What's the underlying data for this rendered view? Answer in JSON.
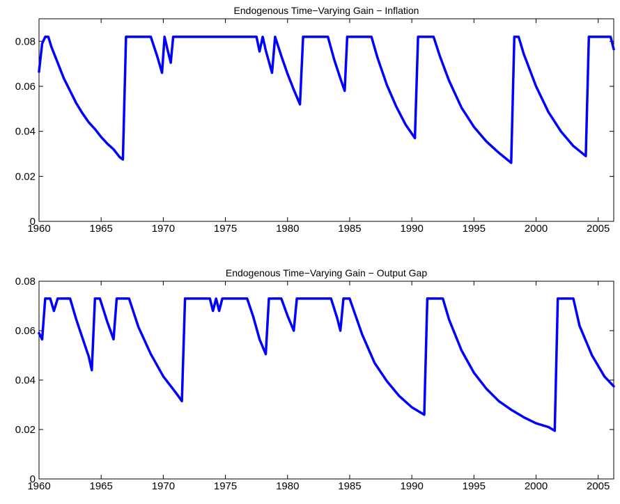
{
  "chart_data": [
    {
      "type": "line",
      "title": "Endogenous Time−Varying Gain − Inflation",
      "xlabel": "",
      "ylabel": "",
      "xlim": [
        1960,
        2006.25
      ],
      "ylim": [
        0,
        0.09
      ],
      "xticks": [
        1960,
        1965,
        1970,
        1975,
        1980,
        1985,
        1990,
        1995,
        2000,
        2005
      ],
      "xtick_labels": [
        "1960",
        "1965",
        "1970",
        "1975",
        "1980",
        "1985",
        "1990",
        "1995",
        "2000",
        "2005"
      ],
      "yticks": [
        0,
        0.02,
        0.04,
        0.06,
        0.08
      ],
      "ytick_labels": [
        "0",
        "0.02",
        "0.04",
        "0.06",
        "0.08"
      ],
      "grid": false,
      "color": "#0000ff",
      "series": [
        {
          "points": [
            [
              1960.0,
              0.0665
            ],
            [
              1960.25,
              0.079
            ],
            [
              1960.5,
              0.082
            ],
            [
              1960.75,
              0.082
            ],
            [
              1961.0,
              0.0775
            ],
            [
              1961.5,
              0.0705
            ],
            [
              1962.0,
              0.0635
            ],
            [
              1962.5,
              0.058
            ],
            [
              1963.0,
              0.0525
            ],
            [
              1963.5,
              0.048
            ],
            [
              1964.0,
              0.044
            ],
            [
              1964.5,
              0.041
            ],
            [
              1965.0,
              0.0375
            ],
            [
              1965.5,
              0.0345
            ],
            [
              1966.0,
              0.032
            ],
            [
              1966.5,
              0.0285
            ],
            [
              1966.75,
              0.0275
            ],
            [
              1967.0,
              0.082
            ],
            [
              1969.0,
              0.082
            ],
            [
              1969.5,
              0.0735
            ],
            [
              1969.9,
              0.066
            ],
            [
              1970.1,
              0.082
            ],
            [
              1970.4,
              0.075
            ],
            [
              1970.6,
              0.0705
            ],
            [
              1970.8,
              0.082
            ],
            [
              1977.5,
              0.082
            ],
            [
              1977.75,
              0.0755
            ],
            [
              1978.0,
              0.082
            ],
            [
              1978.25,
              0.076
            ],
            [
              1978.75,
              0.066
            ],
            [
              1979.0,
              0.082
            ],
            [
              1979.5,
              0.0735
            ],
            [
              1980.0,
              0.0655
            ],
            [
              1980.5,
              0.0585
            ],
            [
              1981.0,
              0.052
            ],
            [
              1981.25,
              0.082
            ],
            [
              1983.25,
              0.082
            ],
            [
              1983.75,
              0.072
            ],
            [
              1984.25,
              0.0635
            ],
            [
              1984.6,
              0.058
            ],
            [
              1984.8,
              0.082
            ],
            [
              1986.75,
              0.082
            ],
            [
              1987.25,
              0.0725
            ],
            [
              1988.0,
              0.0605
            ],
            [
              1988.75,
              0.051
            ],
            [
              1989.5,
              0.043
            ],
            [
              1990.25,
              0.037
            ],
            [
              1990.5,
              0.082
            ],
            [
              1991.75,
              0.082
            ],
            [
              1992.25,
              0.0735
            ],
            [
              1993.0,
              0.0625
            ],
            [
              1994.0,
              0.0505
            ],
            [
              1995.0,
              0.042
            ],
            [
              1996.0,
              0.0355
            ],
            [
              1997.0,
              0.0305
            ],
            [
              1998.0,
              0.026
            ],
            [
              1998.25,
              0.082
            ],
            [
              1998.6,
              0.082
            ],
            [
              1999.0,
              0.0745
            ],
            [
              2000.0,
              0.06
            ],
            [
              2001.0,
              0.0485
            ],
            [
              2002.0,
              0.04
            ],
            [
              2003.0,
              0.0335
            ],
            [
              2004.0,
              0.029
            ],
            [
              2004.25,
              0.082
            ],
            [
              2006.0,
              0.082
            ],
            [
              2006.25,
              0.0765
            ]
          ]
        }
      ]
    },
    {
      "type": "line",
      "title": "Endogenous Time−Varying Gain − Output Gap",
      "xlabel": "",
      "ylabel": "",
      "xlim": [
        1960,
        2006.25
      ],
      "ylim": [
        0,
        0.08
      ],
      "xticks": [
        1960,
        1965,
        1970,
        1975,
        1980,
        1985,
        1990,
        1995,
        2000,
        2005
      ],
      "xtick_labels": [
        "1960",
        "1965",
        "1970",
        "1975",
        "1980",
        "1985",
        "1990",
        "1995",
        "2000",
        "2005"
      ],
      "yticks": [
        0,
        0.02,
        0.04,
        0.06,
        0.08
      ],
      "ytick_labels": [
        "0",
        "0.02",
        "0.04",
        "0.06",
        "0.08"
      ],
      "grid": false,
      "color": "#0000ff",
      "series": [
        {
          "points": [
            [
              1960.0,
              0.059
            ],
            [
              1960.25,
              0.0565
            ],
            [
              1960.5,
              0.073
            ],
            [
              1960.9,
              0.073
            ],
            [
              1961.2,
              0.068
            ],
            [
              1961.5,
              0.073
            ],
            [
              1962.5,
              0.073
            ],
            [
              1963.0,
              0.0645
            ],
            [
              1963.5,
              0.057
            ],
            [
              1964.0,
              0.0495
            ],
            [
              1964.25,
              0.044
            ],
            [
              1964.5,
              0.073
            ],
            [
              1964.9,
              0.073
            ],
            [
              1965.5,
              0.0635
            ],
            [
              1966.0,
              0.0565
            ],
            [
              1966.25,
              0.073
            ],
            [
              1967.25,
              0.073
            ],
            [
              1968.0,
              0.0615
            ],
            [
              1969.0,
              0.0505
            ],
            [
              1970.0,
              0.0415
            ],
            [
              1971.0,
              0.035
            ],
            [
              1971.5,
              0.0315
            ],
            [
              1971.75,
              0.073
            ],
            [
              1973.75,
              0.073
            ],
            [
              1974.0,
              0.068
            ],
            [
              1974.25,
              0.073
            ],
            [
              1974.5,
              0.068
            ],
            [
              1974.75,
              0.073
            ],
            [
              1976.75,
              0.073
            ],
            [
              1977.25,
              0.0655
            ],
            [
              1977.75,
              0.0565
            ],
            [
              1978.25,
              0.0505
            ],
            [
              1978.5,
              0.073
            ],
            [
              1979.5,
              0.073
            ],
            [
              1980.0,
              0.066
            ],
            [
              1980.5,
              0.06
            ],
            [
              1980.75,
              0.073
            ],
            [
              1983.5,
              0.073
            ],
            [
              1984.0,
              0.065
            ],
            [
              1984.25,
              0.06
            ],
            [
              1984.5,
              0.073
            ],
            [
              1985.0,
              0.073
            ],
            [
              1986.0,
              0.0585
            ],
            [
              1987.0,
              0.047
            ],
            [
              1988.0,
              0.0395
            ],
            [
              1989.0,
              0.0335
            ],
            [
              1990.0,
              0.029
            ],
            [
              1991.0,
              0.026
            ],
            [
              1991.25,
              0.073
            ],
            [
              1992.5,
              0.073
            ],
            [
              1993.0,
              0.0645
            ],
            [
              1994.0,
              0.052
            ],
            [
              1995.0,
              0.043
            ],
            [
              1996.0,
              0.0365
            ],
            [
              1997.0,
              0.0315
            ],
            [
              1998.0,
              0.028
            ],
            [
              1999.0,
              0.025
            ],
            [
              2000.0,
              0.0225
            ],
            [
              2001.0,
              0.021
            ],
            [
              2001.5,
              0.0195
            ],
            [
              2001.75,
              0.073
            ],
            [
              2003.0,
              0.073
            ],
            [
              2003.5,
              0.062
            ],
            [
              2004.5,
              0.05
            ],
            [
              2005.5,
              0.0415
            ],
            [
              2006.25,
              0.0375
            ]
          ]
        }
      ]
    }
  ]
}
